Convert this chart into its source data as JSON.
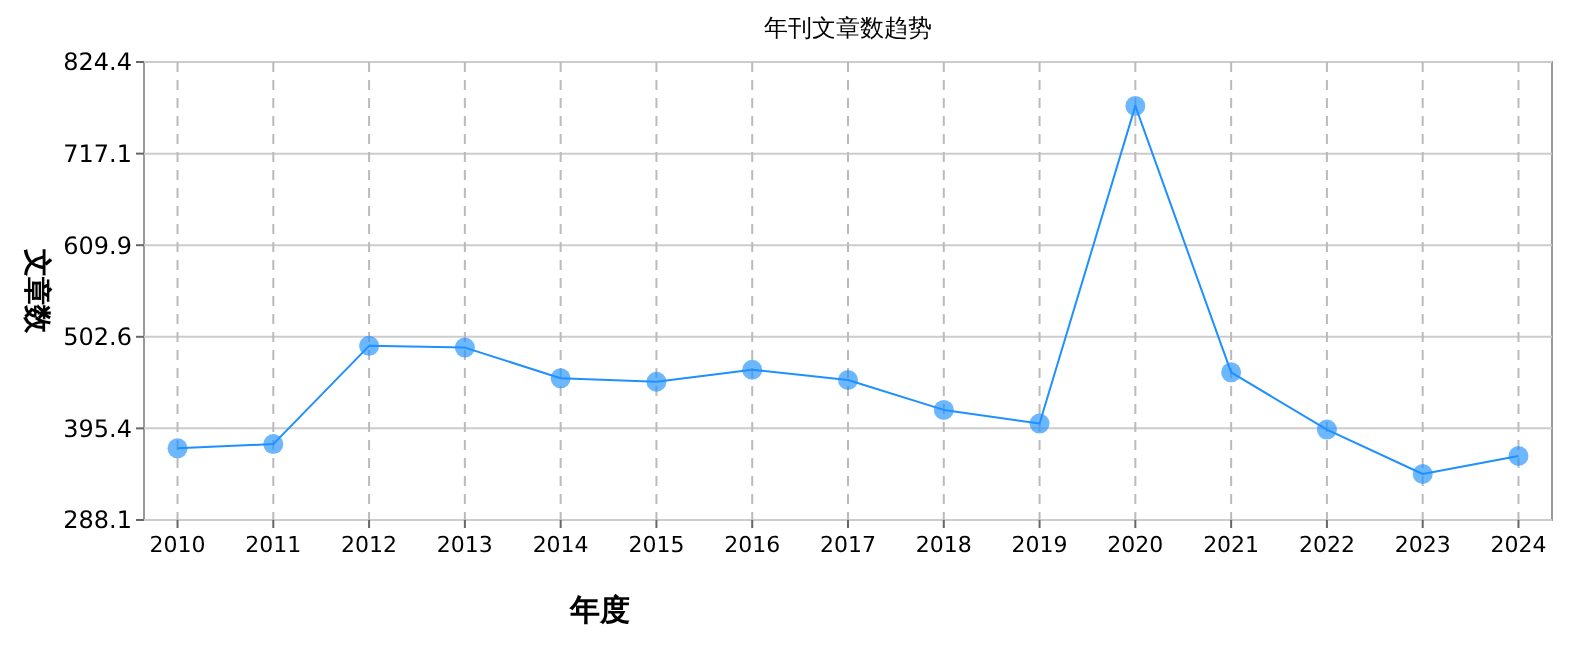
{
  "chart_data": {
    "type": "line",
    "title": "年刊文章数趋势",
    "xlabel": "年度",
    "ylabel": "文章数",
    "categories": [
      "2010",
      "2011",
      "2012",
      "2013",
      "2014",
      "2015",
      "2016",
      "2017",
      "2018",
      "2019",
      "2020",
      "2021",
      "2022",
      "2023",
      "2024"
    ],
    "series": [
      {
        "color": "#1e90ff",
        "values": [
          372,
          377,
          492,
          490,
          454,
          450,
          464,
          452,
          417,
          401,
          773,
          461,
          394,
          342,
          363
        ]
      }
    ],
    "ylim": [
      288.1,
      824.4
    ],
    "yticks": [
      288.1,
      395.4,
      502.6,
      609.9,
      717.1,
      824.4
    ],
    "grid": true,
    "marker": "circle",
    "line_style": "solid"
  }
}
